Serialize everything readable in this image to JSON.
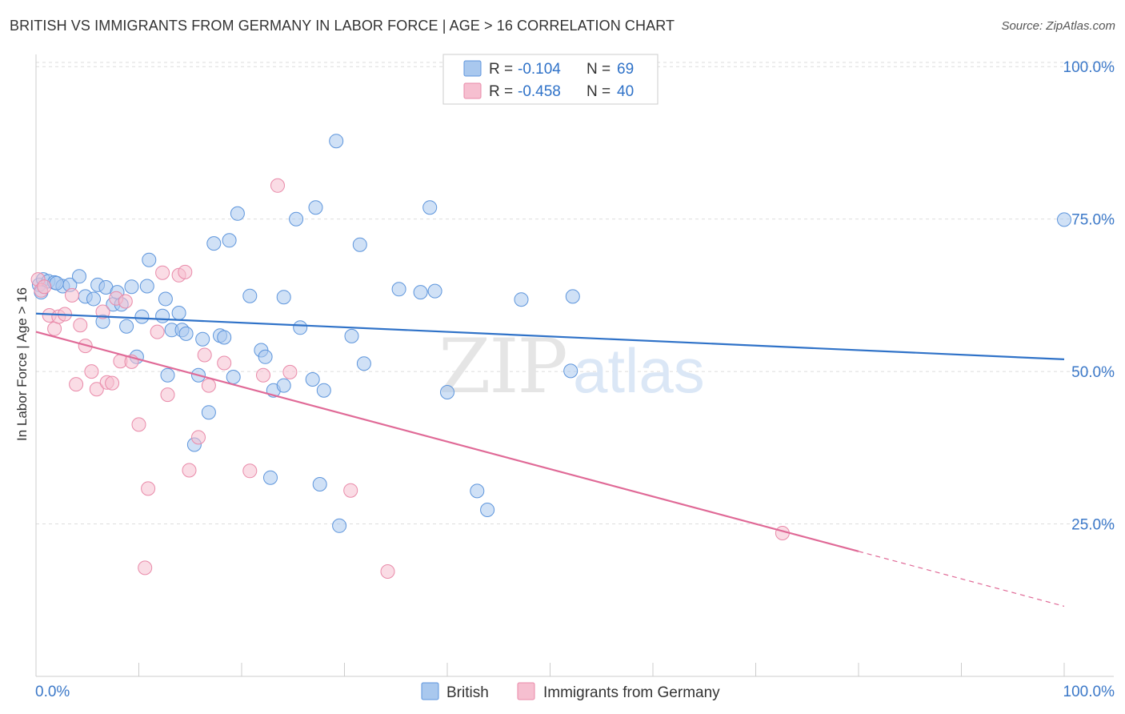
{
  "title": "BRITISH VS IMMIGRANTS FROM GERMANY IN LABOR FORCE | AGE > 16 CORRELATION CHART",
  "source": "Source: ZipAtlas.com",
  "watermark": {
    "zip": "ZIP",
    "atlas": "atlas"
  },
  "colors": {
    "british_fill": "#a9c8ee",
    "british_stroke": "#5d95dc",
    "british_line": "#2f72c8",
    "germany_fill": "#f6bfd0",
    "germany_stroke": "#e98aa9",
    "germany_line": "#e06a97",
    "tick_label": "#3b78c8",
    "grid": "#dddddd"
  },
  "legend": {
    "rows": [
      {
        "r_label": "R =",
        "r_value": "-0.104",
        "n_label": "N =",
        "n_value": "69"
      },
      {
        "r_label": "R =",
        "r_value": "-0.458",
        "n_label": "N =",
        "n_value": "40"
      }
    ]
  },
  "chart_data": {
    "type": "scatter",
    "xlabel": "",
    "ylabel": "In Labor Force | Age > 16",
    "xlim": [
      0,
      100
    ],
    "ylim": [
      0,
      102
    ],
    "x_tick_labels": {
      "min": "0.0%",
      "max": "100.0%"
    },
    "y_ticks": [
      {
        "value": 25,
        "label": "25.0%"
      },
      {
        "value": 50,
        "label": "50.0%"
      },
      {
        "value": 75,
        "label": "75.0%"
      },
      {
        "value": 100,
        "label": "100.0%"
      }
    ],
    "series": [
      {
        "name": "British",
        "r": -0.104,
        "n": 69,
        "trend": {
          "x0": 0,
          "y0": 59.5,
          "x1": 100,
          "y1": 52.0,
          "solid_until": 100
        },
        "points": [
          [
            0.3,
            64.2
          ],
          [
            0.7,
            65.1
          ],
          [
            1.2,
            64.8
          ],
          [
            1.8,
            64.6
          ],
          [
            2.6,
            64.0
          ],
          [
            3.3,
            64.2
          ],
          [
            4.2,
            65.6
          ],
          [
            4.8,
            62.3
          ],
          [
            5.6,
            61.9
          ],
          [
            6.0,
            64.2
          ],
          [
            6.5,
            58.2
          ],
          [
            6.8,
            63.8
          ],
          [
            7.5,
            61.0
          ],
          [
            7.9,
            63.0
          ],
          [
            8.3,
            61.0
          ],
          [
            8.8,
            57.4
          ],
          [
            9.3,
            63.9
          ],
          [
            9.8,
            52.4
          ],
          [
            10.3,
            59.0
          ],
          [
            10.8,
            64.0
          ],
          [
            11.0,
            68.3
          ],
          [
            12.3,
            59.1
          ],
          [
            12.6,
            61.9
          ],
          [
            12.8,
            49.4
          ],
          [
            13.2,
            56.8
          ],
          [
            13.9,
            59.6
          ],
          [
            14.2,
            56.8
          ],
          [
            14.6,
            56.2
          ],
          [
            15.4,
            38.0
          ],
          [
            15.8,
            49.4
          ],
          [
            16.2,
            55.3
          ],
          [
            16.8,
            43.3
          ],
          [
            17.3,
            71.0
          ],
          [
            17.9,
            55.9
          ],
          [
            18.3,
            55.6
          ],
          [
            18.8,
            71.5
          ],
          [
            19.2,
            49.1
          ],
          [
            19.6,
            75.9
          ],
          [
            20.8,
            62.4
          ],
          [
            21.9,
            53.5
          ],
          [
            22.3,
            52.4
          ],
          [
            22.8,
            32.6
          ],
          [
            23.1,
            46.9
          ],
          [
            24.1,
            62.2
          ],
          [
            24.1,
            47.7
          ],
          [
            25.3,
            75.0
          ],
          [
            25.7,
            57.2
          ],
          [
            26.9,
            48.7
          ],
          [
            27.2,
            76.9
          ],
          [
            27.6,
            31.5
          ],
          [
            28.0,
            46.9
          ],
          [
            29.2,
            87.8
          ],
          [
            29.5,
            24.7
          ],
          [
            30.7,
            55.8
          ],
          [
            31.5,
            70.8
          ],
          [
            31.9,
            51.3
          ],
          [
            35.3,
            63.5
          ],
          [
            37.4,
            63.0
          ],
          [
            38.3,
            76.9
          ],
          [
            38.8,
            63.2
          ],
          [
            40.0,
            46.6
          ],
          [
            42.9,
            30.4
          ],
          [
            43.9,
            27.3
          ],
          [
            47.2,
            61.8
          ],
          [
            52.0,
            50.1
          ],
          [
            52.2,
            62.3
          ],
          [
            100.0,
            74.9
          ],
          [
            0.5,
            63.0
          ],
          [
            2.0,
            64.5
          ]
        ]
      },
      {
        "name": "Immigrants from Germany",
        "r": -0.458,
        "n": 40,
        "trend": {
          "x0": 0,
          "y0": 56.5,
          "x1": 100,
          "y1": 11.5,
          "solid_until": 80
        },
        "points": [
          [
            0.2,
            65.1
          ],
          [
            0.5,
            63.3
          ],
          [
            0.8,
            63.9
          ],
          [
            1.3,
            59.2
          ],
          [
            1.8,
            57.0
          ],
          [
            2.2,
            59.0
          ],
          [
            2.8,
            59.4
          ],
          [
            3.5,
            62.5
          ],
          [
            3.9,
            47.9
          ],
          [
            4.3,
            57.6
          ],
          [
            4.8,
            54.2
          ],
          [
            5.4,
            50.0
          ],
          [
            5.9,
            47.1
          ],
          [
            6.5,
            59.8
          ],
          [
            6.9,
            48.2
          ],
          [
            7.4,
            48.1
          ],
          [
            7.8,
            62.0
          ],
          [
            8.2,
            51.7
          ],
          [
            8.7,
            61.5
          ],
          [
            9.3,
            51.6
          ],
          [
            10.0,
            41.3
          ],
          [
            10.6,
            17.8
          ],
          [
            10.9,
            30.8
          ],
          [
            11.8,
            56.5
          ],
          [
            12.3,
            66.2
          ],
          [
            12.8,
            46.2
          ],
          [
            13.9,
            65.8
          ],
          [
            14.5,
            66.3
          ],
          [
            14.9,
            33.8
          ],
          [
            15.8,
            39.2
          ],
          [
            16.4,
            52.7
          ],
          [
            16.8,
            47.7
          ],
          [
            18.3,
            51.4
          ],
          [
            20.8,
            33.7
          ],
          [
            22.1,
            49.4
          ],
          [
            23.5,
            80.5
          ],
          [
            24.7,
            49.9
          ],
          [
            30.6,
            30.5
          ],
          [
            34.2,
            17.2
          ],
          [
            72.6,
            23.5
          ]
        ]
      }
    ]
  }
}
